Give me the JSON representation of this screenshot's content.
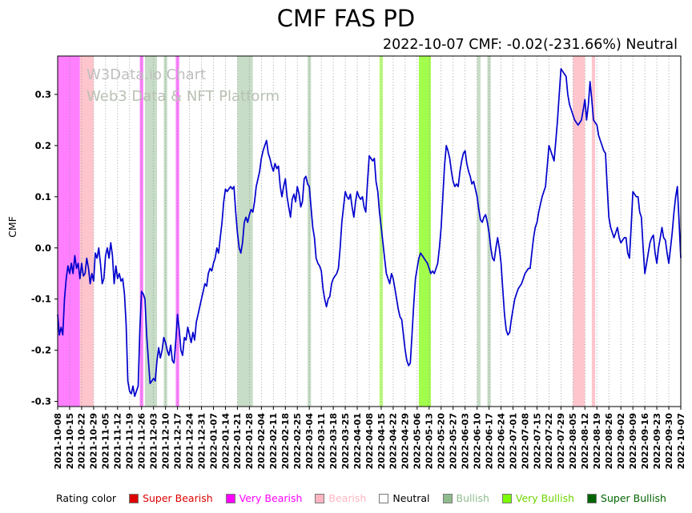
{
  "title": "CMF FAS PD",
  "subtitle": "2022-10-07 CMF: -0.02(-231.66%) Neutral",
  "watermark": {
    "line1": "W3Data.io Chart",
    "line2": "Web3 Data & NFT Platform"
  },
  "legend": {
    "label": "Rating color",
    "items": [
      {
        "label": "Super Bearish",
        "color": "#dd0000",
        "text_color": "#dd0000"
      },
      {
        "label": "Very Bearish",
        "color": "#ff00ff",
        "text_color": "#ff00ff"
      },
      {
        "label": "Bearish",
        "color": "#ffb6c1",
        "text_color": "#ffb6c1"
      },
      {
        "label": "Neutral",
        "color": "#ffffff",
        "text_color": "#000000"
      },
      {
        "label": "Bullish",
        "color": "#8fbc8f",
        "text_color": "#8fbc8f"
      },
      {
        "label": "Very Bullish",
        "color": "#7cfc00",
        "text_color": "#6ed400"
      },
      {
        "label": "Super Bullish",
        "color": "#006400",
        "text_color": "#006400"
      }
    ]
  },
  "chart_data": {
    "type": "line",
    "title": "CMF FAS PD",
    "xlabel": "",
    "ylabel": "CMF",
    "ylim": [
      -0.31,
      0.375
    ],
    "grid": "vertical-dotted-weekly",
    "line_color": "#0000cd",
    "start_date": "2021-10-08",
    "end_date": "2022-10-07",
    "x_tick_labels": [
      "2021-10-08",
      "2021-10-15",
      "2021-10-22",
      "2021-10-29",
      "2021-11-05",
      "2021-11-12",
      "2021-11-19",
      "2021-11-26",
      "2021-12-03",
      "2021-12-10",
      "2021-12-17",
      "2021-12-24",
      "2021-12-31",
      "2022-01-07",
      "2022-01-14",
      "2022-01-21",
      "2022-01-28",
      "2022-02-04",
      "2022-02-11",
      "2022-02-18",
      "2022-02-25",
      "2022-03-04",
      "2022-03-11",
      "2022-03-18",
      "2022-03-25",
      "2022-04-01",
      "2022-04-08",
      "2022-04-15",
      "2022-04-22",
      "2022-04-29",
      "2022-05-06",
      "2022-05-13",
      "2022-05-20",
      "2022-05-27",
      "2022-06-03",
      "2022-06-10",
      "2022-06-17",
      "2022-06-24",
      "2022-07-01",
      "2022-07-08",
      "2022-07-15",
      "2022-07-22",
      "2022-07-29",
      "2022-08-05",
      "2022-08-12",
      "2022-08-19",
      "2022-08-26",
      "2022-09-02",
      "2022-09-09",
      "2022-09-16",
      "2022-09-23",
      "2022-09-30",
      "2022-10-07"
    ],
    "yticks": [
      {
        "v": 0.3,
        "label": "0.3"
      },
      {
        "v": 0.2,
        "label": "0.2"
      },
      {
        "v": 0.1,
        "label": "0.1"
      },
      {
        "v": 0.0,
        "label": "0.0"
      },
      {
        "v": -0.1,
        "label": "-0.1"
      },
      {
        "v": -0.2,
        "label": "-0.2"
      },
      {
        "v": -0.3,
        "label": "-0.3"
      }
    ],
    "series": [
      {
        "name": "CMF",
        "step_days": 1,
        "values": [
          -0.13,
          -0.17,
          -0.155,
          -0.17,
          -0.1,
          -0.06,
          -0.035,
          -0.05,
          -0.03,
          -0.05,
          -0.015,
          -0.04,
          -0.03,
          -0.06,
          -0.03,
          -0.055,
          -0.05,
          -0.02,
          -0.04,
          -0.07,
          -0.05,
          -0.065,
          -0.01,
          -0.02,
          0.0,
          -0.03,
          -0.07,
          -0.06,
          -0.015,
          0.0,
          -0.02,
          0.01,
          -0.015,
          -0.07,
          -0.035,
          -0.06,
          -0.05,
          -0.065,
          -0.06,
          -0.09,
          -0.15,
          -0.26,
          -0.28,
          -0.285,
          -0.27,
          -0.29,
          -0.28,
          -0.27,
          -0.16,
          -0.085,
          -0.09,
          -0.1,
          -0.17,
          -0.22,
          -0.265,
          -0.26,
          -0.255,
          -0.26,
          -0.22,
          -0.195,
          -0.215,
          -0.2,
          -0.175,
          -0.185,
          -0.2,
          -0.21,
          -0.19,
          -0.22,
          -0.225,
          -0.18,
          -0.13,
          -0.16,
          -0.2,
          -0.21,
          -0.175,
          -0.18,
          -0.155,
          -0.17,
          -0.185,
          -0.165,
          -0.18,
          -0.145,
          -0.13,
          -0.115,
          -0.1,
          -0.085,
          -0.07,
          -0.075,
          -0.05,
          -0.04,
          -0.045,
          -0.03,
          -0.02,
          0.0,
          -0.01,
          0.02,
          0.05,
          0.09,
          0.115,
          0.11,
          0.115,
          0.12,
          0.115,
          0.12,
          0.07,
          0.03,
          0.0,
          -0.01,
          0.01,
          0.05,
          0.06,
          0.05,
          0.065,
          0.075,
          0.07,
          0.09,
          0.12,
          0.135,
          0.15,
          0.175,
          0.19,
          0.2,
          0.21,
          0.185,
          0.175,
          0.16,
          0.15,
          0.165,
          0.155,
          0.16,
          0.12,
          0.1,
          0.12,
          0.135,
          0.1,
          0.08,
          0.06,
          0.095,
          0.105,
          0.09,
          0.12,
          0.105,
          0.08,
          0.09,
          0.135,
          0.14,
          0.125,
          0.12,
          0.08,
          0.04,
          0.02,
          -0.02,
          -0.03,
          -0.035,
          -0.045,
          -0.08,
          -0.1,
          -0.115,
          -0.1,
          -0.095,
          -0.07,
          -0.06,
          -0.055,
          -0.05,
          -0.04,
          0.0,
          0.05,
          0.08,
          0.11,
          0.1,
          0.095,
          0.105,
          0.08,
          0.06,
          0.09,
          0.11,
          0.1,
          0.095,
          0.1,
          0.08,
          0.07,
          0.13,
          0.18,
          0.175,
          0.17,
          0.175,
          0.13,
          0.11,
          0.07,
          0.04,
          0.01,
          -0.02,
          -0.05,
          -0.06,
          -0.07,
          -0.05,
          -0.06,
          -0.08,
          -0.1,
          -0.12,
          -0.135,
          -0.14,
          -0.17,
          -0.2,
          -0.22,
          -0.23,
          -0.225,
          -0.17,
          -0.11,
          -0.06,
          -0.04,
          -0.02,
          -0.01,
          -0.015,
          -0.02,
          -0.025,
          -0.03,
          -0.04,
          -0.05,
          -0.045,
          -0.05,
          -0.04,
          -0.03,
          0.0,
          0.04,
          0.1,
          0.16,
          0.2,
          0.19,
          0.175,
          0.15,
          0.13,
          0.12,
          0.125,
          0.12,
          0.15,
          0.17,
          0.185,
          0.19,
          0.165,
          0.15,
          0.14,
          0.125,
          0.13,
          0.115,
          0.1,
          0.075,
          0.055,
          0.05,
          0.06,
          0.065,
          0.05,
          0.03,
          0.0,
          -0.02,
          -0.025,
          0.0,
          0.02,
          0.0,
          -0.03,
          -0.08,
          -0.13,
          -0.16,
          -0.17,
          -0.165,
          -0.14,
          -0.12,
          -0.1,
          -0.09,
          -0.08,
          -0.075,
          -0.07,
          -0.06,
          -0.05,
          -0.045,
          -0.04,
          -0.04,
          -0.01,
          0.02,
          0.04,
          0.05,
          0.07,
          0.085,
          0.1,
          0.11,
          0.12,
          0.16,
          0.2,
          0.19,
          0.18,
          0.17,
          0.21,
          0.25,
          0.3,
          0.35,
          0.345,
          0.34,
          0.335,
          0.3,
          0.28,
          0.27,
          0.26,
          0.25,
          0.245,
          0.24,
          0.245,
          0.25,
          0.27,
          0.29,
          0.25,
          0.28,
          0.325,
          0.29,
          0.25,
          0.245,
          0.24,
          0.22,
          0.21,
          0.2,
          0.19,
          0.185,
          0.12,
          0.06,
          0.04,
          0.03,
          0.02,
          0.03,
          0.04,
          0.02,
          0.01,
          0.015,
          0.02,
          0.02,
          -0.01,
          -0.02,
          0.04,
          0.11,
          0.105,
          0.1,
          0.1,
          0.07,
          0.06,
          0.0,
          -0.05,
          -0.03,
          -0.01,
          0.01,
          0.02,
          0.025,
          -0.01,
          -0.03,
          0.0,
          0.02,
          0.04,
          0.02,
          0.015,
          -0.01,
          -0.03,
          0.0,
          0.03,
          0.07,
          0.1,
          0.12,
          0.05,
          -0.02
        ]
      }
    ],
    "bands": [
      {
        "from": "2021-10-08",
        "to": "2021-10-21",
        "rating": "Very Bearish",
        "color": "#ff00ff",
        "opacity": 0.5
      },
      {
        "from": "2021-10-21",
        "to": "2021-10-29",
        "rating": "Bearish",
        "color": "#ffb6c1",
        "opacity": 0.8
      },
      {
        "from": "2021-11-25",
        "to": "2021-11-27",
        "rating": "Very Bearish",
        "color": "#ff00ff",
        "opacity": 0.5
      },
      {
        "from": "2021-11-28",
        "to": "2021-12-05",
        "rating": "Bullish",
        "color": "#8fbc8f",
        "opacity": 0.5
      },
      {
        "from": "2021-12-09",
        "to": "2021-12-11",
        "rating": "Bullish",
        "color": "#8fbc8f",
        "opacity": 0.5
      },
      {
        "from": "2021-12-16",
        "to": "2021-12-18",
        "rating": "Very Bearish",
        "color": "#ff00ff",
        "opacity": 0.5
      },
      {
        "from": "2022-01-21",
        "to": "2022-01-30",
        "rating": "Bullish",
        "color": "#8fbc8f",
        "opacity": 0.5
      },
      {
        "from": "2022-03-03",
        "to": "2022-03-05",
        "rating": "Bullish",
        "color": "#8fbc8f",
        "opacity": 0.5
      },
      {
        "from": "2022-04-14",
        "to": "2022-04-16",
        "rating": "Very Bullish",
        "color": "#7cfc00",
        "opacity": 0.5
      },
      {
        "from": "2022-05-07",
        "to": "2022-05-14",
        "rating": "Very Bullish",
        "color": "#7cfc00",
        "opacity": 0.7
      },
      {
        "from": "2022-06-10",
        "to": "2022-06-12",
        "rating": "Bullish",
        "color": "#8fbc8f",
        "opacity": 0.5
      },
      {
        "from": "2022-06-16",
        "to": "2022-06-18",
        "rating": "Bullish",
        "color": "#8fbc8f",
        "opacity": 0.5
      },
      {
        "from": "2022-08-05",
        "to": "2022-08-12",
        "rating": "Bearish",
        "color": "#ffb6c1",
        "opacity": 0.8
      },
      {
        "from": "2022-08-16",
        "to": "2022-08-18",
        "rating": "Bearish",
        "color": "#ffb6c1",
        "opacity": 0.8
      }
    ]
  }
}
